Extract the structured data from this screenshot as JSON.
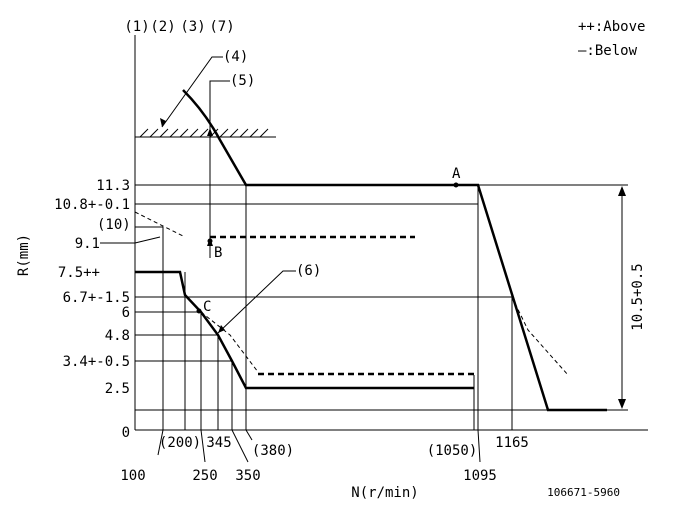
{
  "header_labels": [
    "(1)",
    "(2)",
    "(3)",
    "(7)"
  ],
  "legend": {
    "above": "++:Above",
    "below": "—:Below"
  },
  "callouts": {
    "c4": "(4)",
    "c5": "(5)",
    "c6": "(6)",
    "c10": "(10)"
  },
  "points": {
    "A": "A",
    "B": "B",
    "C": "C"
  },
  "y_axis_label": "R(mm)",
  "x_axis_label": "N(r/min)",
  "y_ticks": [
    "11.3",
    "10.8+-0.1",
    "9.1",
    "7.5++",
    "6.7+-1.5",
    "6",
    "4.8",
    "3.4+-0.5",
    "2.5",
    "0"
  ],
  "x_ticks_lower": [
    "100",
    "250",
    "350",
    "1095"
  ],
  "x_ticks_upper": [
    "(200)",
    "345",
    "(380)",
    "(1050)",
    "1165"
  ],
  "dimension_label": "10.5+0.5",
  "drawing_number": "106671-5960"
}
